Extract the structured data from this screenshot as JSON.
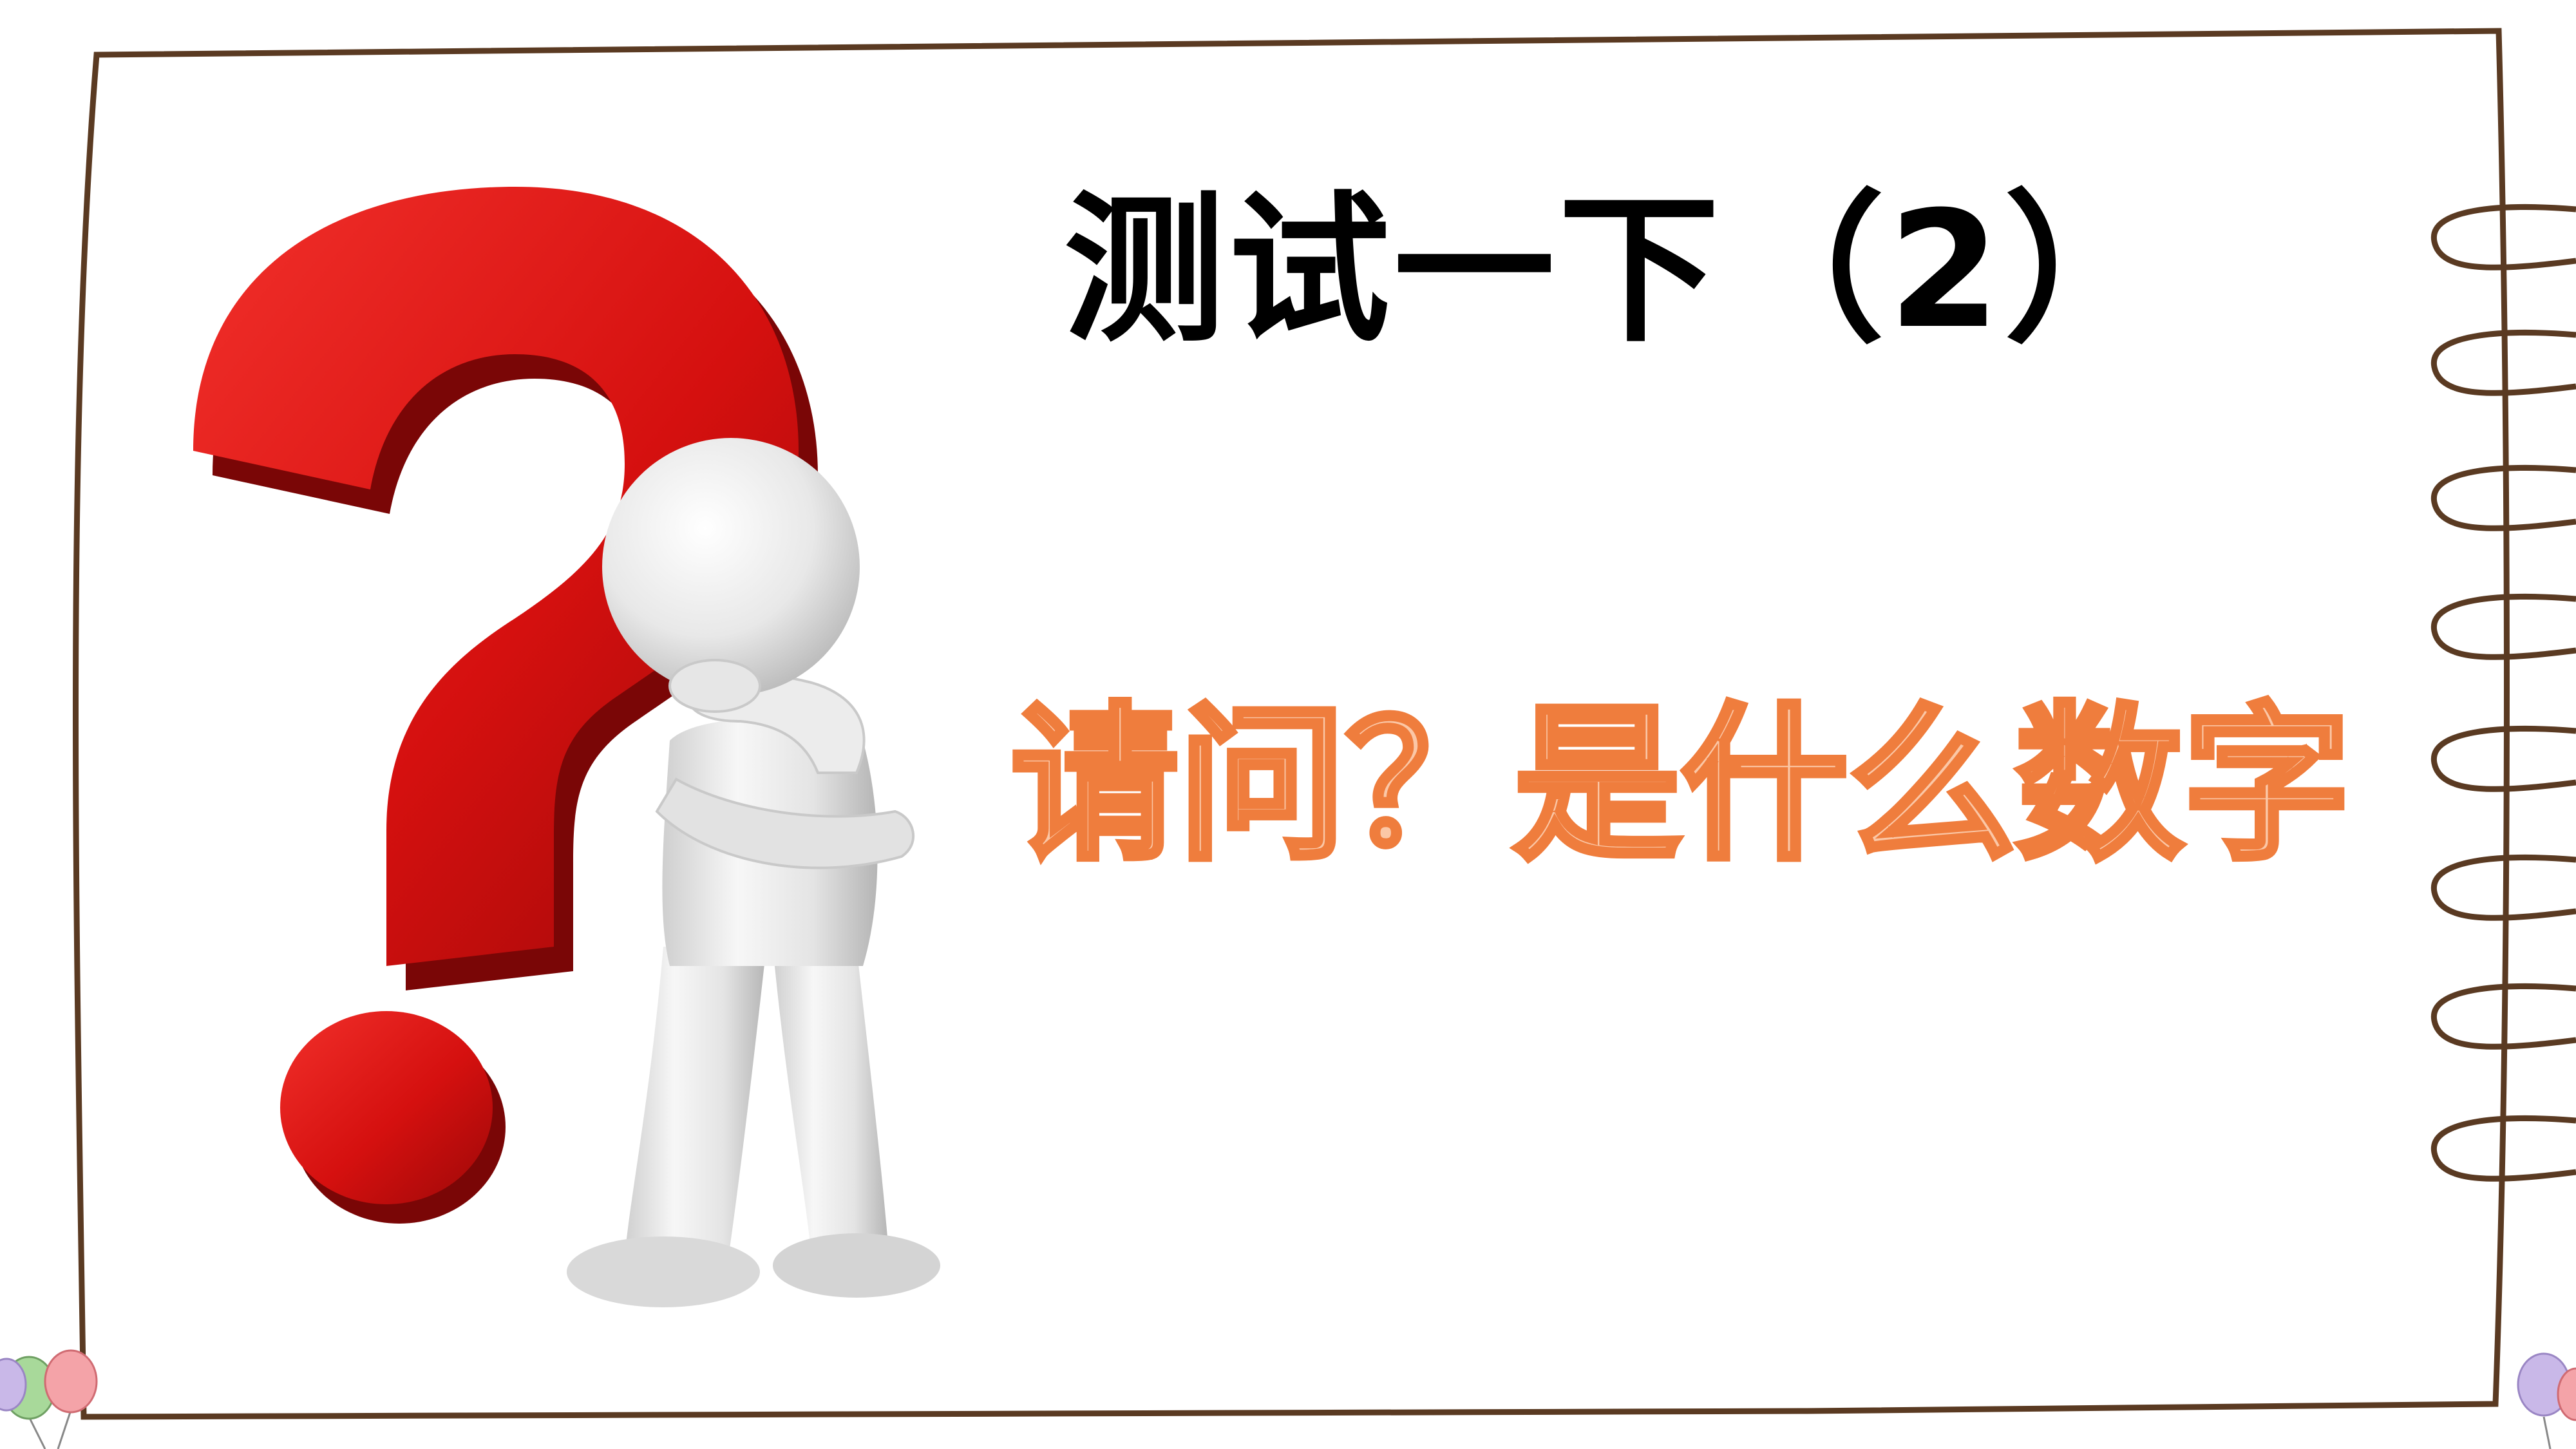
{
  "slide": {
    "title": "测试一下（2）",
    "question": "请问？是什么数字"
  },
  "colors": {
    "frame_stroke": "#5a3a22",
    "question_mark": "#d91216",
    "question_fill": "#fbc7a6",
    "question_stroke": "#ef7d3d",
    "title_text": "#000000"
  },
  "icons": {
    "question_mark": "question-mark-3d",
    "thinking_figure": "thinking-person-figure",
    "notebook_rings": "spiral-binding-rings",
    "balloons": "balloons"
  }
}
